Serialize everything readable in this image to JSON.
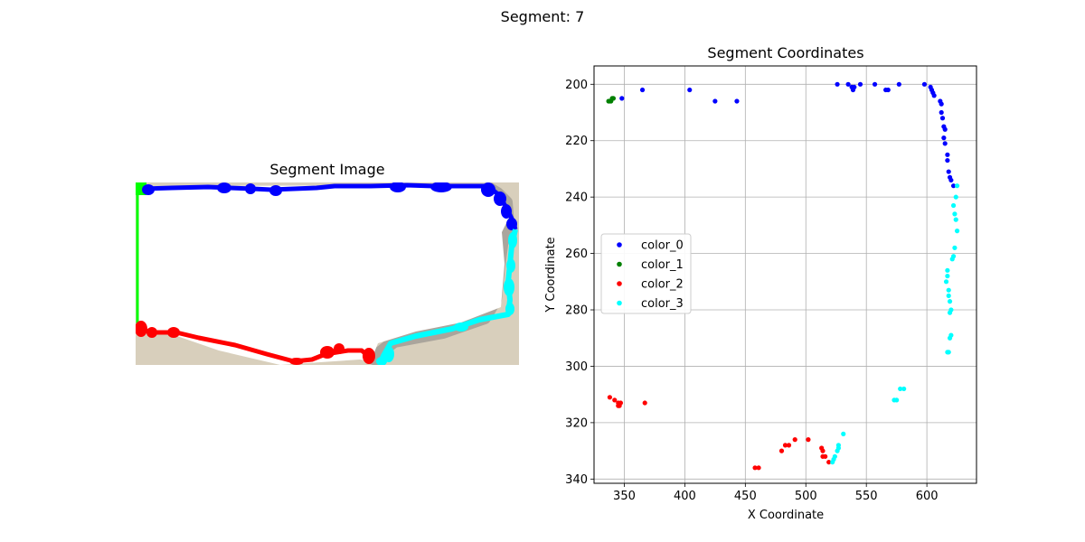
{
  "figure": {
    "suptitle": "Segment: 7"
  },
  "left_panel": {
    "title": "Segment Image"
  },
  "colors": {
    "color_0": "#0000ff",
    "color_1": "#008000",
    "color_2": "#ff0000",
    "color_3": "#00ffff",
    "segment_fill": "#ffffff",
    "background": "#d8cfbc",
    "shadow": "#aaa59c",
    "left_edge": "#00ff00"
  },
  "chart_data": {
    "type": "scatter",
    "title": "Segment Coordinates",
    "xlabel": "X Coordinate",
    "ylabel": "Y Coordinate",
    "xlim": [
      325,
      641
    ],
    "ylim": [
      341.5,
      193.5
    ],
    "y_inverted": true,
    "x_ticks": [
      350,
      400,
      450,
      500,
      550,
      600
    ],
    "y_ticks": [
      200,
      220,
      240,
      260,
      280,
      300,
      320,
      340
    ],
    "grid": true,
    "legend_position": "center-left",
    "series": [
      {
        "name": "color_0",
        "color": "#0000ff",
        "points": [
          [
            348,
            205
          ],
          [
            365,
            202
          ],
          [
            404,
            202
          ],
          [
            425,
            206
          ],
          [
            443,
            206
          ],
          [
            526,
            200
          ],
          [
            535,
            200
          ],
          [
            538,
            201
          ],
          [
            539,
            202
          ],
          [
            540,
            201
          ],
          [
            545,
            200
          ],
          [
            557,
            200
          ],
          [
            566,
            202
          ],
          [
            568,
            202
          ],
          [
            577,
            200
          ],
          [
            598,
            200
          ],
          [
            603,
            201
          ],
          [
            604,
            202
          ],
          [
            605,
            203
          ],
          [
            606,
            204
          ],
          [
            611,
            206
          ],
          [
            612,
            207
          ],
          [
            612,
            210
          ],
          [
            613,
            212
          ],
          [
            614,
            215
          ],
          [
            615,
            216
          ],
          [
            614,
            219
          ],
          [
            615,
            221
          ],
          [
            617,
            225
          ],
          [
            617,
            227
          ],
          [
            618,
            231
          ],
          [
            619,
            233
          ],
          [
            620,
            234
          ],
          [
            622,
            236
          ]
        ]
      },
      {
        "name": "color_1",
        "color": "#008000",
        "points": [
          [
            337,
            206
          ],
          [
            338,
            206
          ],
          [
            339,
            206
          ],
          [
            340,
            205
          ],
          [
            341,
            205
          ]
        ]
      },
      {
        "name": "color_2",
        "color": "#ff0000",
        "points": [
          [
            338,
            311
          ],
          [
            342,
            312
          ],
          [
            345,
            313
          ],
          [
            345,
            314
          ],
          [
            346,
            314
          ],
          [
            347,
            313
          ],
          [
            367,
            313
          ],
          [
            458,
            336
          ],
          [
            461,
            336
          ],
          [
            480,
            330
          ],
          [
            483,
            328
          ],
          [
            486,
            328
          ],
          [
            491,
            326
          ],
          [
            502,
            326
          ],
          [
            513,
            329
          ],
          [
            514,
            330
          ],
          [
            514,
            332
          ],
          [
            516,
            332
          ],
          [
            519,
            334
          ]
        ]
      },
      {
        "name": "color_3",
        "color": "#00ffff",
        "points": [
          [
            522,
            334
          ],
          [
            523,
            333
          ],
          [
            524,
            332
          ],
          [
            526,
            330
          ],
          [
            527,
            329
          ],
          [
            527,
            328
          ],
          [
            531,
            324
          ],
          [
            573,
            312
          ],
          [
            575,
            312
          ],
          [
            578,
            308
          ],
          [
            581,
            308
          ],
          [
            617,
            295
          ],
          [
            618,
            295
          ],
          [
            619,
            290
          ],
          [
            620,
            289
          ],
          [
            619,
            281
          ],
          [
            620,
            280
          ],
          [
            619,
            277
          ],
          [
            618,
            275
          ],
          [
            618,
            273
          ],
          [
            616,
            270
          ],
          [
            617,
            268
          ],
          [
            617,
            266
          ],
          [
            621,
            262
          ],
          [
            622,
            261
          ],
          [
            623,
            258
          ],
          [
            625,
            252
          ],
          [
            624,
            248
          ],
          [
            623,
            246
          ],
          [
            622,
            243
          ],
          [
            624,
            240
          ],
          [
            625,
            236
          ]
        ]
      }
    ]
  }
}
